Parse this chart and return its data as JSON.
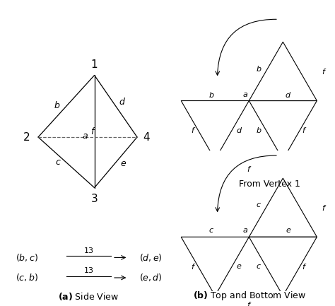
{
  "bg_color": "#ffffff",
  "lc": "#000000",
  "dc": "#666666",
  "fs_label": 9,
  "fs_vertex": 11,
  "fs_caption": 9,
  "fs_eq": 9,
  "v1_mid_labels": [
    "b",
    "a",
    "d"
  ],
  "v1_left_inner": [
    "f",
    "d"
  ],
  "v1_right_inner": [
    "b",
    "f"
  ],
  "v1_bottom": "f",
  "v1_top_left": "b",
  "v1_top_right": "f",
  "v3_mid_labels": [
    "c",
    "a",
    "e"
  ],
  "v3_left_inner": [
    "f",
    "e"
  ],
  "v3_right_inner": [
    "c",
    "f"
  ],
  "v3_bottom": "f",
  "v3_top_left": "c",
  "v3_top_right": "f"
}
